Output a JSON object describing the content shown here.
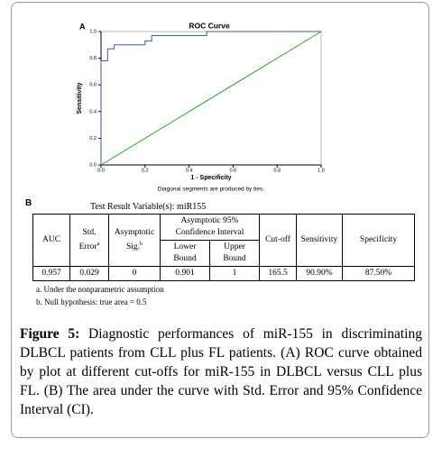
{
  "panel_a_label": "A",
  "chart_data": {
    "type": "line",
    "title": "ROC Curve",
    "x_label": "1 - Specificity",
    "y_label": "Sensitivity",
    "annotation": "Diagonal segments are produced by ties.",
    "xlim": [
      0,
      1
    ],
    "ylim": [
      0,
      1
    ],
    "xticks": [
      {
        "value": 0,
        "label": "0.0"
      },
      {
        "value": 0.2,
        "label": "0.2"
      },
      {
        "value": 0.4,
        "label": "0.4"
      },
      {
        "value": 0.6,
        "label": "0.6"
      },
      {
        "value": 0.8,
        "label": "0.8"
      },
      {
        "value": 1,
        "label": "1.0"
      }
    ],
    "yticks": [
      {
        "value": 0,
        "label": "0.0"
      },
      {
        "value": 0.2,
        "label": "0.2"
      },
      {
        "value": 0.4,
        "label": "0.4"
      },
      {
        "value": 0.6,
        "label": "0.6"
      },
      {
        "value": 0.8,
        "label": "0.8"
      },
      {
        "value": 1,
        "label": "1.0"
      }
    ],
    "series": [
      {
        "color": "#3a5ba8",
        "x": [
          0,
          0,
          0.03,
          0.03,
          0.06,
          0.06,
          0.2,
          0.2,
          0.23,
          0.23,
          0.48,
          0.48,
          1
        ],
        "values": [
          0,
          0.78,
          0.78,
          0.87,
          0.87,
          0.9,
          0.9,
          0.93,
          0.93,
          0.97,
          0.97,
          1,
          1
        ]
      },
      {
        "color": "#2ca02c",
        "x": [
          0,
          1
        ],
        "values": [
          0,
          1
        ]
      }
    ]
  },
  "panel_b_label": "B",
  "table": {
    "title": "Test Result Variable(s):  miR155",
    "header": {
      "auc": "AUC",
      "std_error": "Std. Error",
      "std_error_sup": "a",
      "sig": "Asymptotic Sig.",
      "sig_sup": "b",
      "ci": "Asymptotic 95% Confidence Interval",
      "lower": "Lower Bound",
      "upper": "Upper Bound",
      "cutoff": "Cut-off",
      "sensitivity": "Sensitivity",
      "specificity": "Specificity"
    },
    "row": [
      "0.957",
      "0.029",
      "0",
      "0.901",
      "1",
      "165.5",
      "90.90%",
      "87.50%"
    ],
    "notes": [
      "a. Under the nonparametric assumption",
      "b. Null hypothesis: true area = 0.5"
    ]
  },
  "caption": {
    "label": "Figure 5:",
    "text": " Diagnostic performances of miR-155 in discriminating DLBCL patients from CLL plus FL patients. (A) ROC curve obtained by plot at different cut-offs for miR-155 in DLBCL versus CLL plus FL. (B) The area under the curve with Std. Error and 95% Confidence Interval (CI)."
  }
}
